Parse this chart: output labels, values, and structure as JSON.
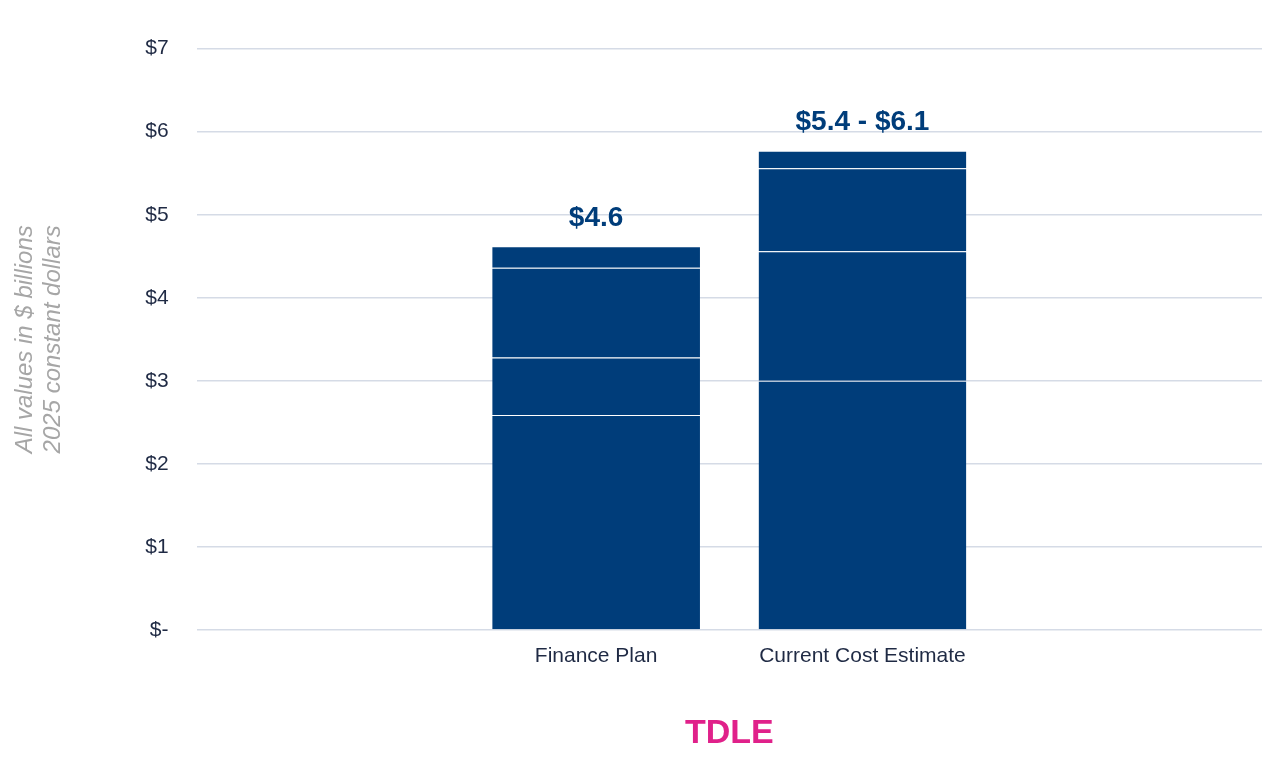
{
  "chart_data": {
    "type": "bar",
    "stacked": true,
    "categories": [
      null,
      "Finance Plan",
      "Current Cost Estimate",
      null
    ],
    "series": [
      {
        "color": "#003d7a",
        "values": [
          null,
          2.59,
          3.0,
          null
        ]
      },
      {
        "color": "#003d7a",
        "values": [
          null,
          0.69,
          1.56,
          null
        ]
      },
      {
        "color": "#003d7a",
        "values": [
          null,
          1.08,
          1.0,
          null
        ]
      },
      {
        "color": "#003d7a",
        "values": [
          null,
          0.26,
          0.21,
          null
        ]
      }
    ],
    "totals": [
      null,
      "$4.6",
      "$5.4 - $6.1",
      null
    ],
    "xlabel": "TDLE",
    "ylabel": "All values in $ billions\n2025 constant dollars",
    "ylim": [
      0,
      7
    ],
    "yticks": [
      {
        "value": 0,
        "label": "$-"
      },
      {
        "value": 1,
        "label": "$1"
      },
      {
        "value": 2,
        "label": "$2"
      },
      {
        "value": 3,
        "label": "$3"
      },
      {
        "value": 4,
        "label": "$4"
      },
      {
        "value": 5,
        "label": "$5"
      },
      {
        "value": 6,
        "label": "$6"
      },
      {
        "value": 7,
        "label": "$7"
      }
    ],
    "grid": "y",
    "legend": false
  }
}
